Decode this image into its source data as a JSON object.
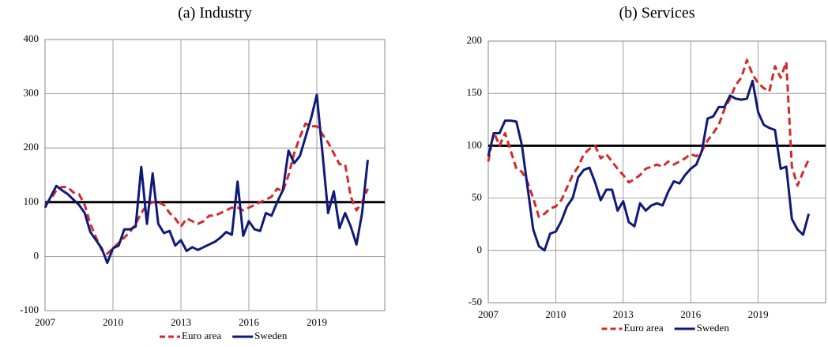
{
  "chart_data": [
    {
      "type": "line",
      "title": "(a) Industry",
      "x": [
        2007,
        2007.25,
        2007.5,
        2007.75,
        2008,
        2008.25,
        2008.5,
        2008.75,
        2009,
        2009.25,
        2009.5,
        2009.75,
        2010,
        2010.25,
        2010.5,
        2010.75,
        2011,
        2011.25,
        2011.5,
        2011.75,
        2012,
        2012.25,
        2012.5,
        2012.75,
        2013,
        2013.25,
        2013.5,
        2013.75,
        2014,
        2014.25,
        2014.5,
        2014.75,
        2015,
        2015.25,
        2015.5,
        2015.75,
        2016,
        2016.25,
        2016.5,
        2016.75,
        2017,
        2017.25,
        2017.5,
        2017.75,
        2018,
        2018.25,
        2018.5,
        2018.75,
        2019,
        2019.25,
        2019.5,
        2019.75,
        2020,
        2020.25,
        2020.5,
        2020.75,
        2021,
        2021.25
      ],
      "series": [
        {
          "name": "Euro area",
          "color": "#d42a2a",
          "dashed": true,
          "values": [
            95,
            105,
            122,
            128,
            128,
            118,
            115,
            95,
            60,
            35,
            12,
            5,
            15,
            25,
            35,
            45,
            60,
            80,
            95,
            100,
            100,
            95,
            80,
            70,
            55,
            70,
            65,
            60,
            65,
            75,
            75,
            80,
            85,
            90,
            90,
            85,
            90,
            95,
            100,
            105,
            110,
            125,
            120,
            150,
            190,
            220,
            245,
            240,
            240,
            225,
            210,
            190,
            170,
            170,
            110,
            85,
            100,
            125
          ]
        },
        {
          "name": "Sweden",
          "color": "#0f1a78",
          "dashed": false,
          "values": [
            90,
            110,
            130,
            122,
            115,
            105,
            95,
            80,
            45,
            30,
            15,
            -12,
            15,
            20,
            50,
            50,
            55,
            165,
            60,
            153,
            60,
            43,
            47,
            20,
            30,
            10,
            17,
            12,
            17,
            22,
            27,
            35,
            45,
            40,
            138,
            38,
            65,
            50,
            47,
            80,
            75,
            100,
            122,
            195,
            172,
            185,
            220,
            255,
            298,
            190,
            80,
            120,
            52,
            80,
            55,
            22,
            80,
            178
          ]
        }
      ],
      "xlim": [
        2007,
        2022
      ],
      "xticks": [
        2007,
        2010,
        2013,
        2016,
        2019
      ],
      "ylim": [
        -100,
        400
      ],
      "yticks": [
        -100,
        0,
        100,
        200,
        300,
        400
      ],
      "reference_line": 100,
      "grid": true
    },
    {
      "type": "line",
      "title": "(b) Services",
      "x": [
        2007,
        2007.25,
        2007.5,
        2007.75,
        2008,
        2008.25,
        2008.5,
        2008.75,
        2009,
        2009.25,
        2009.5,
        2009.75,
        2010,
        2010.25,
        2010.5,
        2010.75,
        2011,
        2011.25,
        2011.5,
        2011.75,
        2012,
        2012.25,
        2012.5,
        2012.75,
        2013,
        2013.25,
        2013.5,
        2013.75,
        2014,
        2014.25,
        2014.5,
        2014.75,
        2015,
        2015.25,
        2015.5,
        2015.75,
        2016,
        2016.25,
        2016.5,
        2016.75,
        2017,
        2017.25,
        2017.5,
        2017.75,
        2018,
        2018.25,
        2018.5,
        2018.75,
        2019,
        2019.25,
        2019.5,
        2019.75,
        2020,
        2020.25,
        2020.5,
        2020.75,
        2021,
        2021.25
      ],
      "series": [
        {
          "name": "Euro area",
          "color": "#d42a2a",
          "dashed": true,
          "values": [
            85,
            113,
            100,
            112,
            95,
            78,
            75,
            65,
            50,
            32,
            35,
            40,
            42,
            48,
            60,
            72,
            80,
            92,
            97,
            100,
            88,
            92,
            85,
            78,
            72,
            65,
            68,
            72,
            78,
            80,
            82,
            80,
            85,
            82,
            85,
            88,
            92,
            90,
            95,
            105,
            112,
            120,
            135,
            145,
            158,
            165,
            182,
            168,
            160,
            155,
            152,
            176,
            165,
            180,
            80,
            62,
            75,
            87
          ]
        },
        {
          "name": "Sweden",
          "color": "#0f1a78",
          "dashed": false,
          "values": [
            90,
            112,
            112,
            124,
            124,
            123,
            100,
            60,
            20,
            4,
            0,
            16,
            18,
            28,
            42,
            50,
            70,
            77,
            79,
            65,
            48,
            58,
            58,
            38,
            47,
            27,
            23,
            45,
            38,
            43,
            45,
            43,
            56,
            66,
            64,
            72,
            78,
            82,
            95,
            126,
            128,
            137,
            137,
            148,
            145,
            144,
            145,
            162,
            132,
            120,
            117,
            115,
            78,
            80,
            30,
            20,
            15,
            35
          ]
        }
      ],
      "xlim": [
        2007,
        2022
      ],
      "xticks": [
        2007,
        2010,
        2013,
        2016,
        2019
      ],
      "ylim": [
        -50,
        200
      ],
      "yticks": [
        -50,
        0,
        50,
        100,
        150,
        200
      ],
      "reference_line": 100,
      "grid": true
    }
  ]
}
